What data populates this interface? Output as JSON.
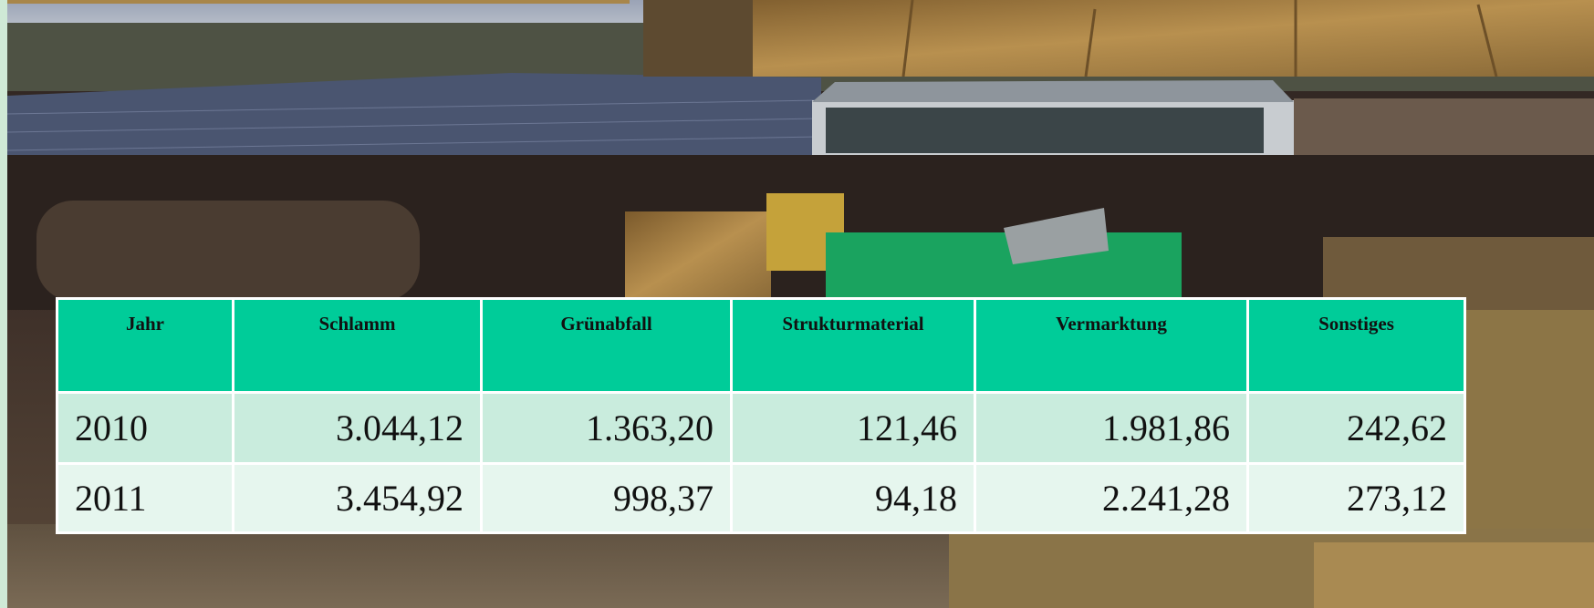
{
  "table": {
    "header": [
      "Jahr",
      "Schlamm",
      "Grünabfall",
      "Strukturmaterial",
      "Vermarktung",
      "Sonstiges"
    ],
    "rows": [
      [
        "2010",
        "3.044,12",
        "1.363,20",
        "121,46",
        "1.981,86",
        "242,62"
      ],
      [
        "2011",
        "3.454,92",
        "998,37",
        "94,18",
        "2.241,28",
        "273,12"
      ]
    ]
  }
}
